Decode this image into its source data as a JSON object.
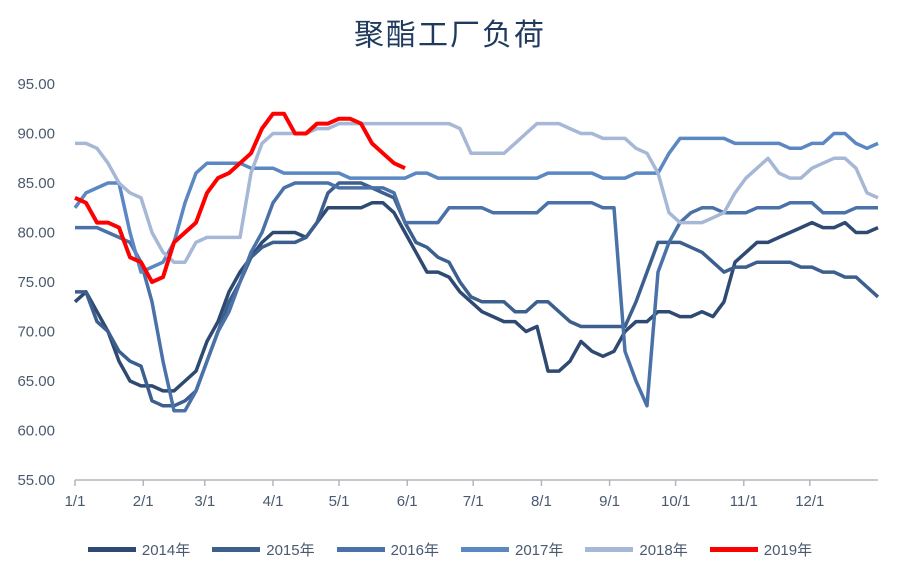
{
  "chart_data": {
    "type": "line",
    "title": "聚酯工厂负荷",
    "xlabel": "",
    "ylabel": "",
    "ylim": [
      55,
      95
    ],
    "yticks": [
      "55.00",
      "60.00",
      "65.00",
      "70.00",
      "75.00",
      "80.00",
      "85.00",
      "90.00",
      "95.00"
    ],
    "xlim": [
      0,
      365
    ],
    "xticks": [
      {
        "label": "1/1",
        "day": 0
      },
      {
        "label": "2/1",
        "day": 31
      },
      {
        "label": "3/1",
        "day": 59
      },
      {
        "label": "4/1",
        "day": 90
      },
      {
        "label": "5/1",
        "day": 120
      },
      {
        "label": "6/1",
        "day": 151
      },
      {
        "label": "7/1",
        "day": 181
      },
      {
        "label": "8/1",
        "day": 212
      },
      {
        "label": "9/1",
        "day": 243
      },
      {
        "label": "10/1",
        "day": 273
      },
      {
        "label": "11/1",
        "day": 304
      },
      {
        "label": "12/1",
        "day": 334
      }
    ],
    "grid": false,
    "legend_position": "bottom",
    "series": [
      {
        "name": "2014年",
        "color": "#2e4a73",
        "x": [
          0,
          5,
          10,
          15,
          20,
          25,
          30,
          35,
          40,
          45,
          50,
          55,
          60,
          65,
          70,
          75,
          80,
          85,
          90,
          95,
          100,
          105,
          110,
          115,
          120,
          125,
          130,
          135,
          140,
          145,
          150,
          155,
          160,
          165,
          170,
          175,
          180,
          185,
          190,
          195,
          200,
          205,
          210,
          215,
          220,
          225,
          230,
          235,
          240,
          245,
          250,
          255,
          260,
          265,
          270,
          275,
          280,
          285,
          290,
          295,
          300,
          305,
          310,
          315,
          320,
          325,
          330,
          335,
          340,
          345,
          350,
          355,
          360,
          365
        ],
        "y": [
          73,
          74,
          72,
          70,
          67,
          65,
          64.5,
          64.5,
          64,
          64,
          65,
          66,
          69,
          71,
          74,
          76,
          77.5,
          79,
          80,
          80,
          80,
          79.5,
          81,
          82.5,
          82.5,
          82.5,
          82.5,
          83,
          83,
          82,
          80,
          78,
          76,
          76,
          75.5,
          74,
          73,
          72,
          71.5,
          71,
          71,
          70,
          70.5,
          66,
          66,
          67,
          69,
          68,
          67.5,
          68,
          70,
          71,
          71,
          72,
          72,
          71.5,
          71.5,
          72,
          71.5,
          73,
          77,
          78,
          79,
          79,
          79.5,
          80,
          80.5,
          81,
          80.5,
          80.5,
          81,
          80,
          80,
          80.5
        ]
      },
      {
        "name": "2015年",
        "color": "#3c5f8e",
        "x": [
          0,
          5,
          10,
          15,
          20,
          25,
          30,
          35,
          40,
          45,
          50,
          55,
          60,
          65,
          70,
          75,
          80,
          85,
          90,
          95,
          100,
          105,
          110,
          115,
          120,
          125,
          130,
          135,
          140,
          145,
          150,
          155,
          160,
          165,
          170,
          175,
          180,
          185,
          190,
          195,
          200,
          205,
          210,
          215,
          220,
          225,
          230,
          235,
          240,
          245,
          250,
          255,
          260,
          265,
          270,
          275,
          280,
          285,
          290,
          295,
          300,
          305,
          310,
          315,
          320,
          325,
          330,
          335,
          340,
          345,
          350,
          355,
          360,
          365
        ],
        "y": [
          74,
          74,
          71,
          70,
          68,
          67,
          66.5,
          63,
          62.5,
          62.5,
          63,
          64,
          67,
          70,
          73,
          75,
          77.5,
          78.5,
          79,
          79,
          79,
          79.5,
          81,
          84,
          85,
          85,
          85,
          84.5,
          84,
          83.5,
          81,
          79,
          78.5,
          77.5,
          77,
          75,
          73.5,
          73,
          73,
          73,
          72,
          72,
          73,
          73,
          72,
          71,
          70.5,
          70.5,
          70.5,
          70.5,
          70.5,
          73,
          76,
          79,
          79,
          79,
          78.5,
          78,
          77,
          76,
          76.5,
          76.5,
          77,
          77,
          77,
          77,
          76.5,
          76.5,
          76,
          76,
          75.5,
          75.5,
          74.5,
          73.5
        ]
      },
      {
        "name": "2016年",
        "color": "#4a72a8",
        "x": [
          0,
          5,
          10,
          15,
          20,
          25,
          30,
          35,
          40,
          45,
          50,
          55,
          60,
          65,
          70,
          75,
          80,
          85,
          90,
          95,
          100,
          105,
          110,
          115,
          120,
          125,
          130,
          135,
          140,
          145,
          150,
          155,
          160,
          165,
          170,
          175,
          180,
          185,
          190,
          195,
          200,
          205,
          210,
          215,
          220,
          225,
          230,
          235,
          240,
          245,
          250,
          255,
          260,
          265,
          270,
          275,
          280,
          285,
          290,
          295,
          300,
          305,
          310,
          315,
          320,
          325,
          330,
          335,
          340,
          345,
          350,
          355,
          360,
          365
        ],
        "y": [
          80.5,
          80.5,
          80.5,
          80,
          79.5,
          79,
          77,
          73,
          67,
          62,
          62,
          64,
          67,
          70,
          72,
          75,
          78,
          80,
          83,
          84.5,
          85,
          85,
          85,
          85,
          84.5,
          84.5,
          84.5,
          84.5,
          84.5,
          84,
          81,
          81,
          81,
          81,
          82.5,
          82.5,
          82.5,
          82.5,
          82,
          82,
          82,
          82,
          82,
          83,
          83,
          83,
          83,
          83,
          82.5,
          82.5,
          68,
          65,
          62.5,
          76,
          79,
          81,
          82,
          82.5,
          82.5,
          82,
          82,
          82,
          82.5,
          82.5,
          82.5,
          83,
          83,
          83,
          82,
          82,
          82,
          82.5,
          82.5,
          82.5
        ]
      },
      {
        "name": "2017年",
        "color": "#5b87c2",
        "x": [
          0,
          5,
          10,
          15,
          20,
          25,
          30,
          35,
          40,
          45,
          50,
          55,
          60,
          65,
          70,
          75,
          80,
          85,
          90,
          95,
          100,
          105,
          110,
          115,
          120,
          125,
          130,
          135,
          140,
          145,
          150,
          155,
          160,
          165,
          170,
          175,
          180,
          185,
          190,
          195,
          200,
          205,
          210,
          215,
          220,
          225,
          230,
          235,
          240,
          245,
          250,
          255,
          260,
          265,
          270,
          275,
          280,
          285,
          290,
          295,
          300,
          305,
          310,
          315,
          320,
          325,
          330,
          335,
          340,
          345,
          350,
          355,
          360,
          365
        ],
        "y": [
          82.5,
          84,
          84.5,
          85,
          85,
          80,
          76,
          76.5,
          77,
          79,
          83,
          86,
          87,
          87,
          87,
          87,
          86.5,
          86.5,
          86.5,
          86,
          86,
          86,
          86,
          86,
          86,
          85.5,
          85.5,
          85.5,
          85.5,
          85.5,
          85.5,
          86,
          86,
          85.5,
          85.5,
          85.5,
          85.5,
          85.5,
          85.5,
          85.5,
          85.5,
          85.5,
          85.5,
          86,
          86,
          86,
          86,
          86,
          85.5,
          85.5,
          85.5,
          86,
          86,
          86,
          88,
          89.5,
          89.5,
          89.5,
          89.5,
          89.5,
          89,
          89,
          89,
          89,
          89,
          88.5,
          88.5,
          89,
          89,
          90,
          90,
          89,
          88.5,
          89
        ]
      },
      {
        "name": "2018年",
        "color": "#a6b8d6",
        "x": [
          0,
          5,
          10,
          15,
          20,
          25,
          30,
          35,
          40,
          45,
          50,
          55,
          60,
          65,
          70,
          75,
          80,
          85,
          90,
          95,
          100,
          105,
          110,
          115,
          120,
          125,
          130,
          135,
          140,
          145,
          150,
          155,
          160,
          165,
          170,
          175,
          180,
          185,
          190,
          195,
          200,
          205,
          210,
          215,
          220,
          225,
          230,
          235,
          240,
          245,
          250,
          255,
          260,
          265,
          270,
          275,
          280,
          285,
          290,
          295,
          300,
          305,
          310,
          315,
          320,
          325,
          330,
          335,
          340,
          345,
          350,
          355,
          360,
          365
        ],
        "y": [
          89,
          89,
          88.5,
          87,
          85,
          84,
          83.5,
          80,
          78,
          77,
          77,
          79,
          79.5,
          79.5,
          79.5,
          79.5,
          86,
          89,
          90,
          90,
          90,
          90,
          90.5,
          90.5,
          91,
          91,
          91,
          91,
          91,
          91,
          91,
          91,
          91,
          91,
          91,
          90.5,
          88,
          88,
          88,
          88,
          89,
          90,
          91,
          91,
          91,
          90.5,
          90,
          90,
          89.5,
          89.5,
          89.5,
          88.5,
          88,
          86,
          82,
          81,
          81,
          81,
          81.5,
          82,
          84,
          85.5,
          86.5,
          87.5,
          86,
          85.5,
          85.5,
          86.5,
          87,
          87.5,
          87.5,
          86.5,
          84,
          83.5
        ]
      },
      {
        "name": "2019年",
        "color": "#ff0000",
        "x": [
          0,
          5,
          10,
          15,
          20,
          25,
          30,
          35,
          40,
          45,
          50,
          55,
          60,
          65,
          70,
          75,
          80,
          85,
          90,
          95,
          100,
          105,
          110,
          115,
          120,
          125,
          130,
          135,
          140,
          145,
          150
        ],
        "y": [
          83.5,
          83,
          81,
          81,
          80.5,
          77.5,
          77,
          75,
          75.5,
          79,
          80,
          81,
          84,
          85.5,
          86,
          87,
          88,
          90.5,
          92,
          92,
          90,
          90,
          91,
          91,
          91.5,
          91.5,
          91,
          89,
          88,
          87,
          86.5
        ]
      }
    ]
  }
}
